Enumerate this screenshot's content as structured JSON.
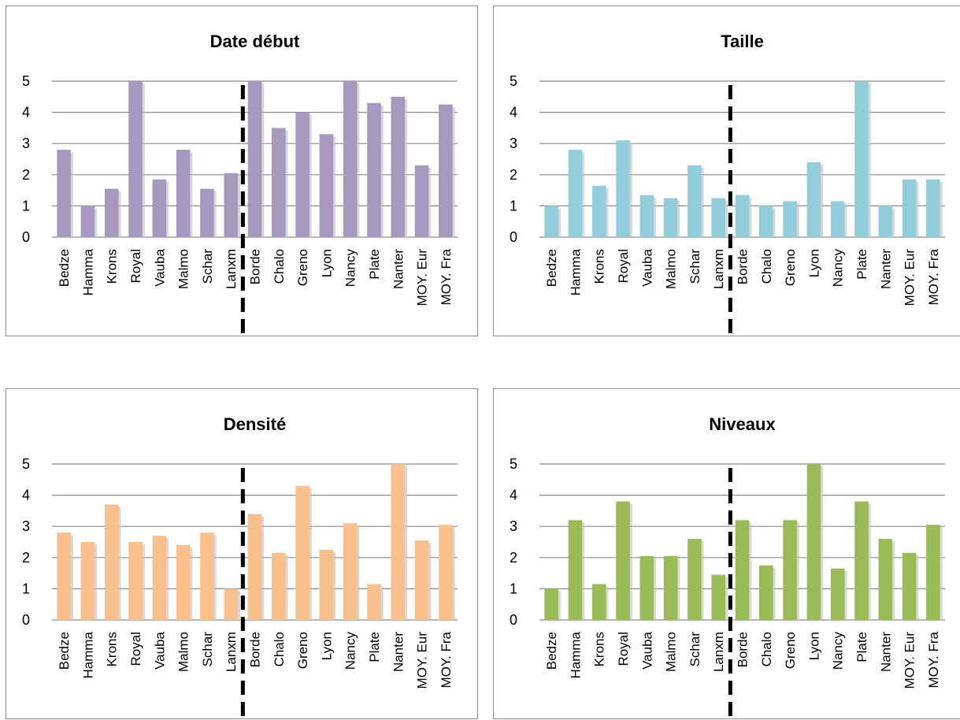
{
  "chart_data": [
    {
      "type": "bar",
      "title": "Date début",
      "color": "#a699bf",
      "ylim": [
        0,
        5
      ],
      "yticks": [
        0,
        1,
        2,
        3,
        4,
        5
      ],
      "grid": true,
      "divider_after_index": 7,
      "categories": [
        "Bedze",
        "Hamma",
        "Krons",
        "Royal",
        "Vauba",
        "Malmo",
        "Schar",
        "Lanxm",
        "Borde",
        "Chalo",
        "Greno",
        "Lyon",
        "Nancy",
        "Plate",
        "Nanter",
        "MOY. Eur",
        "MOY. Fra"
      ],
      "values": [
        2.8,
        1.0,
        1.55,
        5.0,
        1.85,
        2.8,
        1.55,
        2.05,
        5.0,
        3.5,
        4.0,
        3.3,
        5.0,
        4.3,
        4.5,
        2.3,
        4.25
      ]
    },
    {
      "type": "bar",
      "title": "Taille",
      "color": "#93ccdb",
      "ylim": [
        0,
        5
      ],
      "yticks": [
        0,
        1,
        2,
        3,
        4,
        5
      ],
      "grid": true,
      "divider_after_index": 7,
      "categories": [
        "Bedze",
        "Hamma",
        "Krons",
        "Royal",
        "Vauba",
        "Malmo",
        "Schar",
        "Lanxm",
        "Borde",
        "Chalo",
        "Greno",
        "Lyon",
        "Nancy",
        "Plate",
        "Nanter",
        "MOY. Eur",
        "MOY. Fra"
      ],
      "values": [
        1.0,
        2.8,
        1.65,
        3.1,
        1.35,
        1.25,
        2.3,
        1.25,
        1.35,
        1.0,
        1.15,
        2.4,
        1.15,
        5.0,
        1.0,
        1.85,
        1.85
      ]
    },
    {
      "type": "bar",
      "title": "Densité",
      "color": "#f9c08e",
      "ylim": [
        0,
        5
      ],
      "yticks": [
        0,
        1,
        2,
        3,
        4,
        5
      ],
      "grid": true,
      "divider_after_index": 7,
      "categories": [
        "Bedze",
        "Hamma",
        "Krons",
        "Royal",
        "Vauba",
        "Malmo",
        "Schar",
        "Lanxm",
        "Borde",
        "Chalo",
        "Greno",
        "Lyon",
        "Nancy",
        "Plate",
        "Nanter",
        "MOY. Eur",
        "MOY. Fra"
      ],
      "values": [
        2.8,
        2.5,
        3.7,
        2.5,
        2.7,
        2.4,
        2.8,
        1.0,
        3.4,
        2.15,
        4.3,
        2.25,
        3.1,
        1.15,
        5.0,
        2.55,
        3.05
      ]
    },
    {
      "type": "bar",
      "title": "Niveaux",
      "color": "#9bbb59",
      "ylim": [
        0,
        5
      ],
      "yticks": [
        0,
        1,
        2,
        3,
        4,
        5
      ],
      "grid": true,
      "divider_after_index": 7,
      "categories": [
        "Bedze",
        "Hamma",
        "Krons",
        "Royal",
        "Vauba",
        "Malmo",
        "Schar",
        "Lanxm",
        "Borde",
        "Chalo",
        "Greno",
        "Lyon",
        "Nancy",
        "Plate",
        "Nanter",
        "MOY. Eur",
        "MOY. Fra"
      ],
      "values": [
        1.0,
        3.2,
        1.15,
        3.8,
        2.05,
        2.05,
        2.6,
        1.45,
        3.2,
        1.75,
        3.2,
        5.0,
        1.65,
        3.8,
        2.6,
        2.15,
        3.05
      ]
    }
  ]
}
